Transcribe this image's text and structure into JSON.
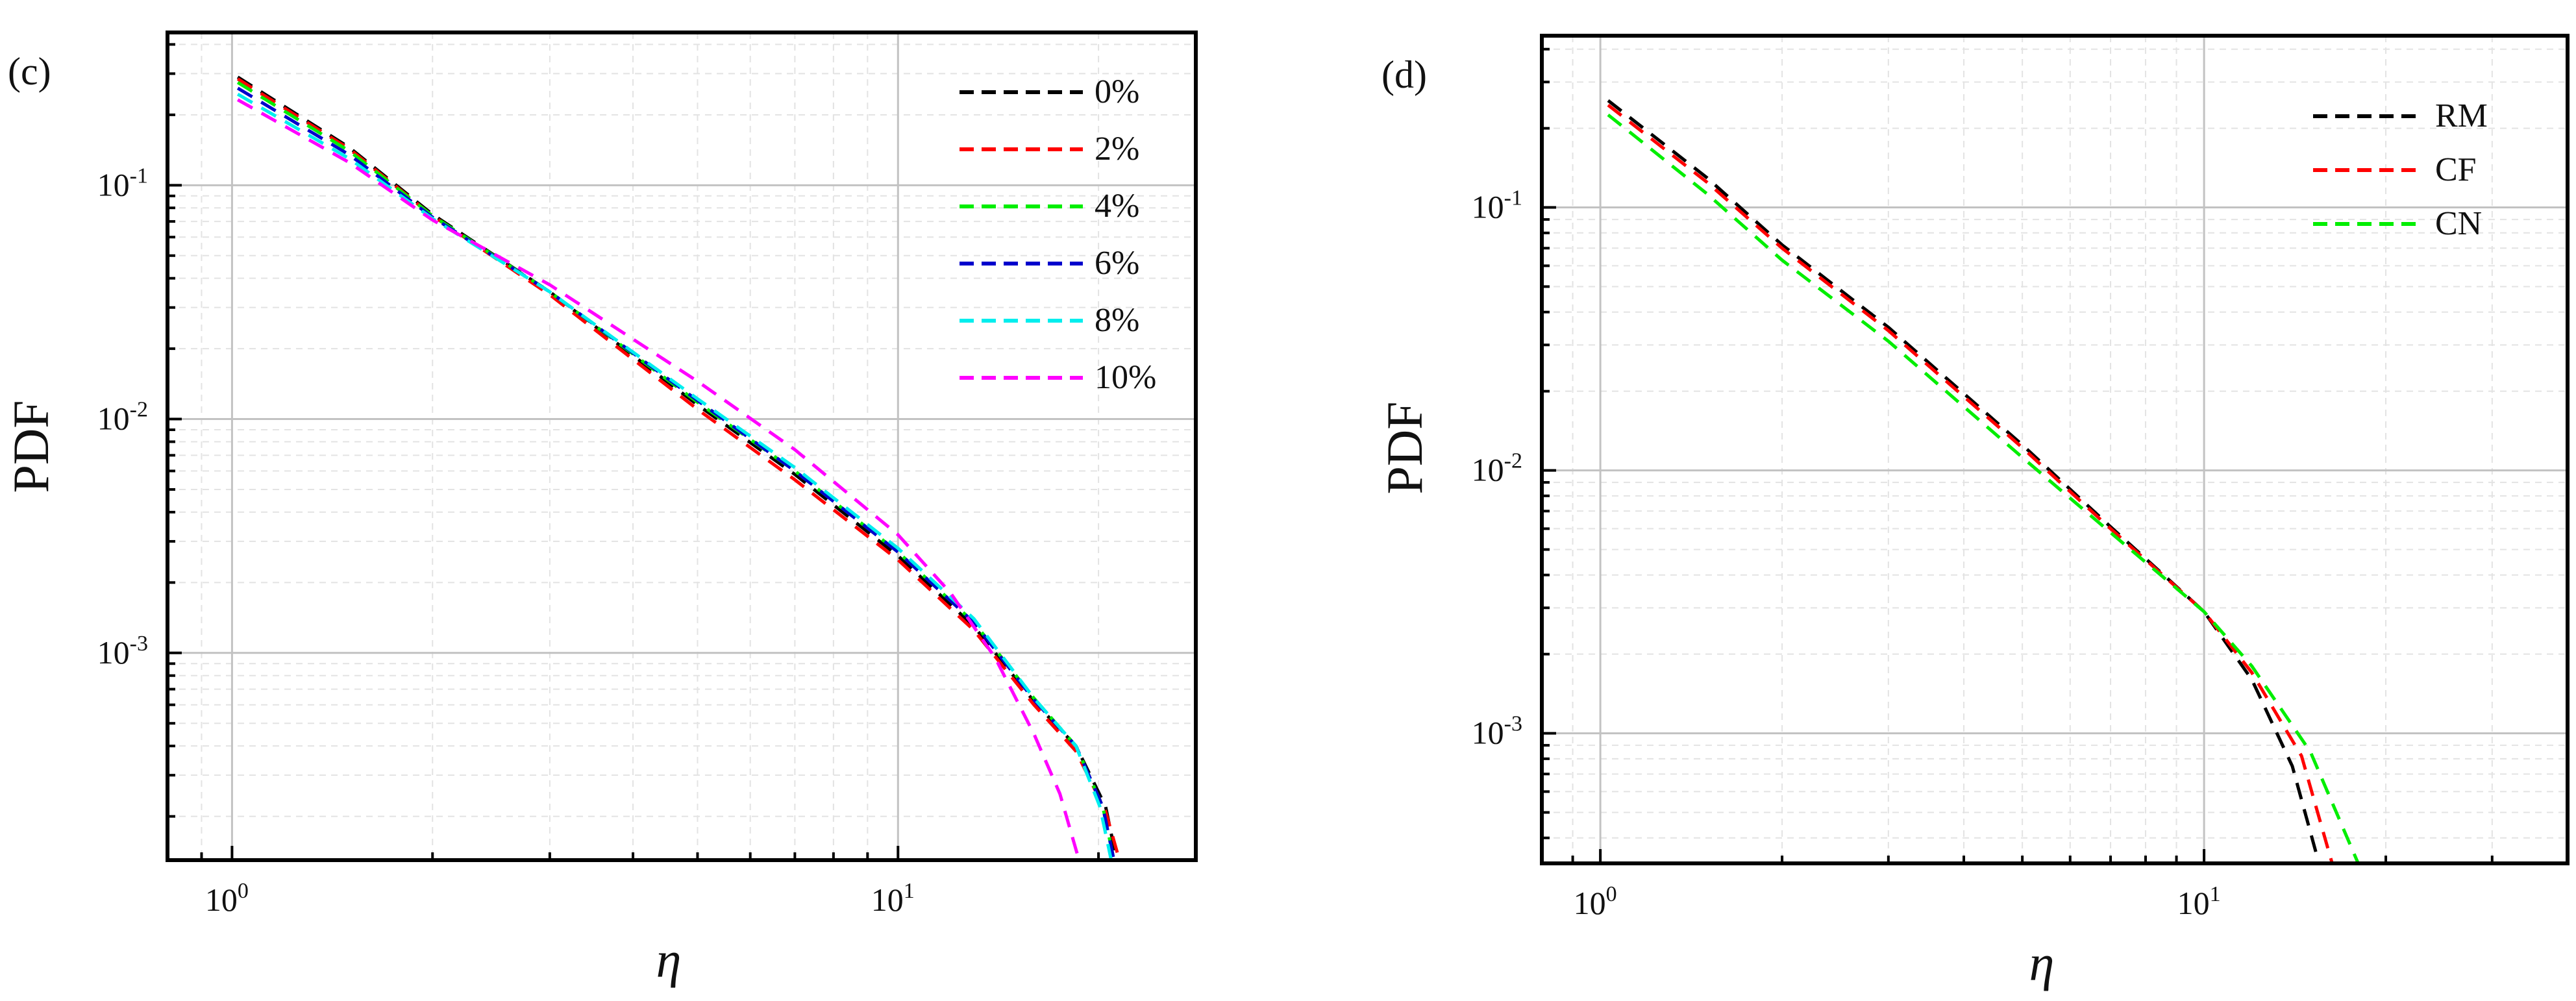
{
  "chart_data": [
    {
      "panel": "(c)",
      "type": "line",
      "xscale": "log",
      "yscale": "log",
      "xlabel": "η",
      "ylabel": "PDF",
      "xlim": [
        0.8,
        28
      ],
      "ylim": [
        0.00013,
        0.45
      ],
      "xticks": [
        {
          "base": "10",
          "exp": "0",
          "value": 1
        },
        {
          "base": "10",
          "exp": "1",
          "value": 10
        }
      ],
      "yticks": [
        {
          "base": "10",
          "exp": "-3",
          "value": 0.001
        },
        {
          "base": "10",
          "exp": "-2",
          "value": 0.01
        },
        {
          "base": "10",
          "exp": "-1",
          "value": 0.1
        }
      ],
      "legend_position": "top-right",
      "grid": true,
      "series": [
        {
          "name": "0%",
          "color": "#000000",
          "x": [
            1.02,
            1.5,
            2,
            3,
            5,
            7,
            10,
            13,
            16,
            18.5,
            20.5,
            21.3
          ],
          "y": [
            0.29,
            0.145,
            0.075,
            0.035,
            0.0115,
            0.0058,
            0.0026,
            0.0013,
            0.00062,
            0.0004,
            0.00022,
            0.00013
          ]
        },
        {
          "name": "2%",
          "color": "#ff0000",
          "x": [
            1.02,
            1.5,
            2,
            3,
            5,
            7,
            10,
            13,
            16,
            18.5,
            20.5,
            21.5
          ],
          "y": [
            0.285,
            0.143,
            0.074,
            0.034,
            0.011,
            0.0055,
            0.0025,
            0.00125,
            0.0006,
            0.00038,
            0.00021,
            0.00013
          ]
        },
        {
          "name": "4%",
          "color": "#00ee00",
          "x": [
            1.02,
            1.5,
            2,
            3,
            5,
            7,
            10,
            13,
            16,
            18.5,
            20.3,
            21.1
          ],
          "y": [
            0.275,
            0.14,
            0.074,
            0.035,
            0.0118,
            0.006,
            0.0027,
            0.00135,
            0.00064,
            0.0004,
            0.00022,
            0.00013
          ]
        },
        {
          "name": "6%",
          "color": "#0000cc",
          "x": [
            1.02,
            1.5,
            2,
            3,
            5,
            7,
            10,
            13,
            16,
            18.5,
            20.3,
            21.1
          ],
          "y": [
            0.26,
            0.135,
            0.073,
            0.035,
            0.012,
            0.006,
            0.0027,
            0.00135,
            0.00063,
            0.0004,
            0.00022,
            0.00013
          ]
        },
        {
          "name": "8%",
          "color": "#00eeee",
          "x": [
            1.02,
            1.5,
            2,
            3,
            5,
            7,
            10,
            13,
            16,
            18.5,
            20.1,
            20.9
          ],
          "y": [
            0.245,
            0.13,
            0.072,
            0.035,
            0.0122,
            0.0062,
            0.0028,
            0.0014,
            0.00064,
            0.0004,
            0.00022,
            0.00013
          ]
        },
        {
          "name": "10%",
          "color": "#ff00ff",
          "x": [
            1.02,
            1.5,
            2,
            3,
            5,
            7,
            10,
            12,
            14,
            16,
            17.5,
            18.7
          ],
          "y": [
            0.232,
            0.125,
            0.071,
            0.0375,
            0.0145,
            0.0074,
            0.0032,
            0.0018,
            0.00095,
            0.00045,
            0.00025,
            0.00013
          ]
        }
      ]
    },
    {
      "panel": "(d)",
      "type": "line",
      "xscale": "log",
      "yscale": "log",
      "xlabel": "η",
      "ylabel": "PDF",
      "xlim": [
        0.8,
        40
      ],
      "ylim": [
        0.00032,
        0.45
      ],
      "xticks": [
        {
          "base": "10",
          "exp": "0",
          "value": 1
        },
        {
          "base": "10",
          "exp": "1",
          "value": 10
        }
      ],
      "yticks": [
        {
          "base": "10",
          "exp": "-3",
          "value": 0.001
        },
        {
          "base": "10",
          "exp": "-2",
          "value": 0.01
        },
        {
          "base": "10",
          "exp": "-1",
          "value": 0.1
        }
      ],
      "legend_position": "top-right",
      "grid": true,
      "series": [
        {
          "name": "RM",
          "color": "#000000",
          "x": [
            1.03,
            1.5,
            2,
            3,
            5,
            7,
            10,
            12,
            14,
            15.5
          ],
          "y": [
            0.255,
            0.13,
            0.072,
            0.035,
            0.0125,
            0.0061,
            0.0029,
            0.0016,
            0.00075,
            0.00032
          ]
        },
        {
          "name": "CF",
          "color": "#ff0000",
          "x": [
            1.03,
            1.5,
            2,
            3,
            5,
            7,
            10,
            12,
            14.5,
            16.3
          ],
          "y": [
            0.245,
            0.125,
            0.07,
            0.034,
            0.0122,
            0.006,
            0.0029,
            0.0017,
            0.00082,
            0.00032
          ]
        },
        {
          "name": "CN",
          "color": "#00ee00",
          "x": [
            1.03,
            1.5,
            2,
            3,
            5,
            7,
            10,
            12,
            15,
            18
          ],
          "y": [
            0.225,
            0.113,
            0.063,
            0.031,
            0.0112,
            0.0058,
            0.0029,
            0.0018,
            0.00085,
            0.00032
          ]
        }
      ]
    }
  ]
}
